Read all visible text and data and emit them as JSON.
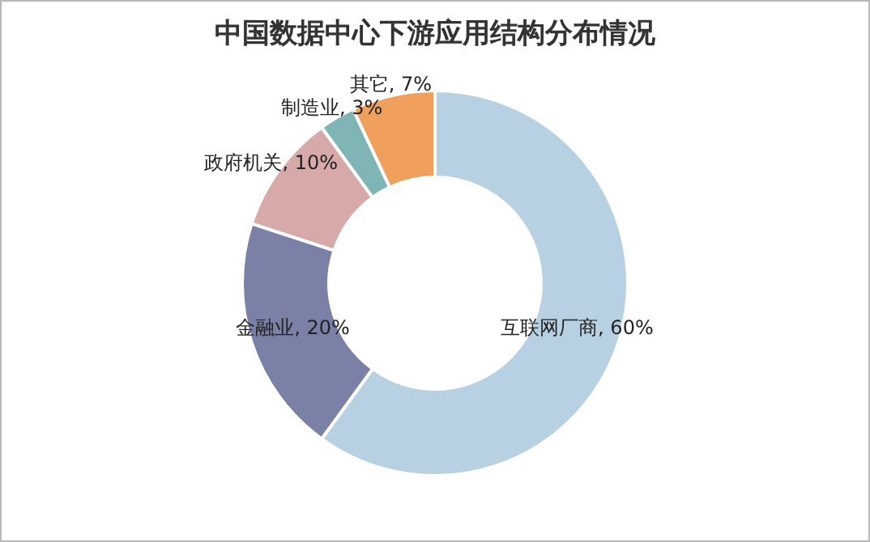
{
  "chart_data": {
    "type": "donut",
    "title": "中国数据中心下游应用结构分布情况",
    "categories": [
      "互联网厂商",
      "金融业",
      "政府机关",
      "制造业",
      "其它"
    ],
    "values": [
      60,
      20,
      10,
      3,
      7
    ],
    "value_labels": [
      "60%",
      "20%",
      "10%",
      "3%",
      "7%"
    ],
    "colors": [
      "#b7d1e3",
      "#7a80a6",
      "#d7a9a9",
      "#7fb5b5",
      "#f0a05c"
    ],
    "legend": false
  }
}
